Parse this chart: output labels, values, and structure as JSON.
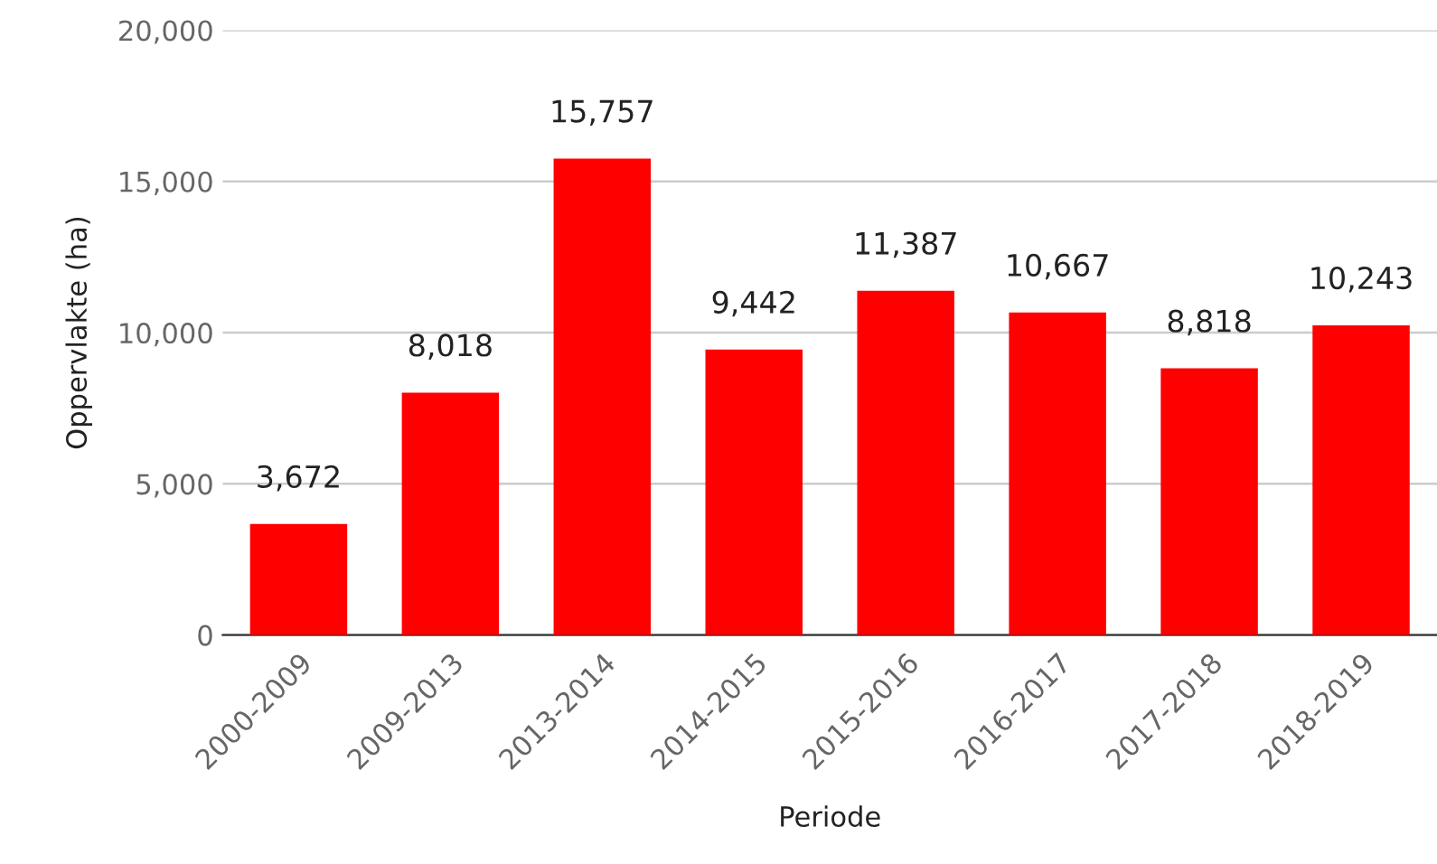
{
  "chart_data": {
    "type": "bar",
    "xlabel": "Periode",
    "ylabel": "Oppervlakte (ha)",
    "categories": [
      "2000-2009",
      "2009-2013",
      "2013-2014",
      "2014-2015",
      "2015-2016",
      "2016-2017",
      "2017-2018",
      "2018-2019"
    ],
    "values": [
      3672,
      8018,
      15757,
      9442,
      11387,
      10667,
      8818,
      10243
    ],
    "color": "#ff0000",
    "ylim": [
      0,
      20000
    ],
    "yticks": [
      {
        "value": 0,
        "label": "0"
      },
      {
        "value": 5000,
        "label": "5,000"
      },
      {
        "value": 10000,
        "label": "10,000"
      },
      {
        "value": 15000,
        "label": "15,000"
      },
      {
        "value": 20000,
        "label": "20,000"
      }
    ],
    "grid": "y",
    "value_labels": [
      "3,672",
      "8,018",
      "15,757",
      "9,442",
      "11,387",
      "10,667",
      "8,818",
      "10,243"
    ]
  }
}
